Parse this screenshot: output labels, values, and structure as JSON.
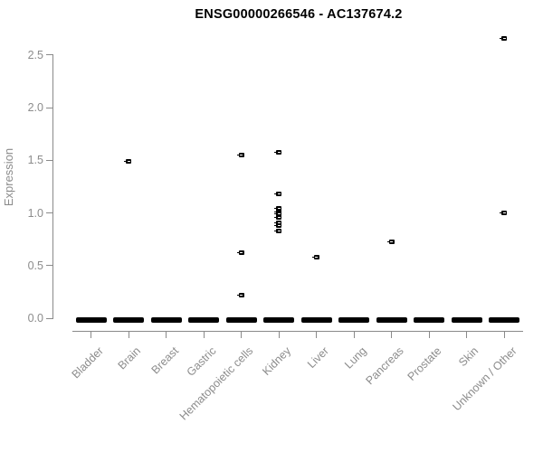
{
  "title": "ENSG00000266546 - AC137674.2",
  "chart_data": {
    "type": "scatter",
    "title": "ENSG00000266546 - AC137674.2",
    "xlabel": "",
    "ylabel": "Expression",
    "ylim": [
      0.0,
      2.5
    ],
    "yticks": [
      "0.0",
      "0.5",
      "1.0",
      "1.5",
      "2.0",
      "2.5"
    ],
    "grid": false,
    "legend": "none",
    "marker_style": "small black square with white median line and left whisker tick",
    "zero_cluster_note": "every category shows a dense cluster of overlapping points at expression 0, rendered as a thick black dash",
    "categories": [
      {
        "label": "Bladder",
        "zero_cluster": true,
        "outliers": []
      },
      {
        "label": "Brain",
        "zero_cluster": true,
        "outliers": [
          1.49
        ]
      },
      {
        "label": "Breast",
        "zero_cluster": true,
        "outliers": []
      },
      {
        "label": "Gastric",
        "zero_cluster": true,
        "outliers": []
      },
      {
        "label": "Hematopoietic cells",
        "zero_cluster": true,
        "outliers": [
          1.55,
          0.62,
          0.22
        ]
      },
      {
        "label": "Kidney",
        "zero_cluster": true,
        "outliers": [
          1.58,
          1.18,
          1.04,
          1.01,
          0.99,
          0.96,
          0.91,
          0.88,
          0.83
        ]
      },
      {
        "label": "Liver",
        "zero_cluster": true,
        "outliers": [
          0.58
        ]
      },
      {
        "label": "Lung",
        "zero_cluster": true,
        "outliers": []
      },
      {
        "label": "Pancreas",
        "zero_cluster": true,
        "outliers": [
          0.73
        ]
      },
      {
        "label": "Prostate",
        "zero_cluster": true,
        "outliers": []
      },
      {
        "label": "Skin",
        "zero_cluster": true,
        "outliers": []
      },
      {
        "label": "Unknown / Other",
        "zero_cluster": true,
        "outliers": [
          2.66,
          1.0
        ]
      }
    ],
    "colors": {
      "marker": "#000000",
      "axis": "#8a8a8a",
      "labels": "#8c8c8c",
      "title": "#000000",
      "background": "#ffffff"
    }
  }
}
